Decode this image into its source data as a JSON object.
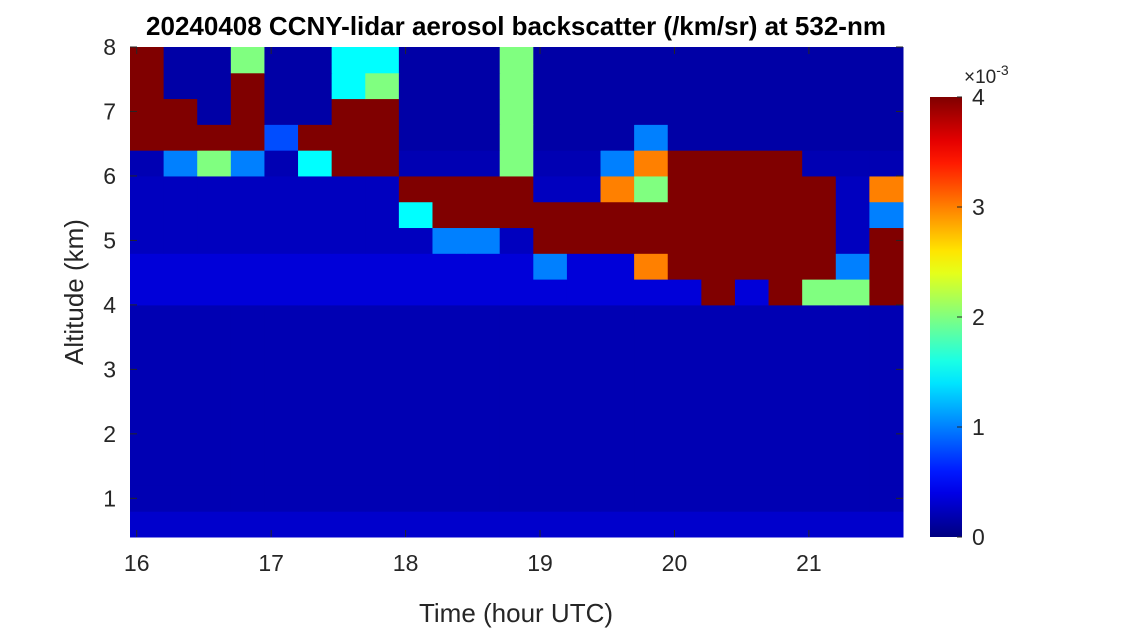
{
  "chart_data": {
    "type": "heatmap",
    "title": "20240408 CCNY-lidar aerosol backscatter (/km/sr) at 532-nm",
    "xlabel": "Time (hour UTC)",
    "ylabel": "Altitude (km)",
    "colormap": "jet",
    "colorbar_multiplier": {
      "base": "×10",
      "exponent": "-3"
    },
    "x_edges": [
      15.95,
      16.2,
      16.45,
      16.7,
      16.95,
      17.2,
      17.45,
      17.7,
      17.95,
      18.2,
      18.45,
      18.7,
      18.95,
      19.2,
      19.45,
      19.7,
      19.95,
      20.2,
      20.45,
      20.7,
      20.95,
      21.2,
      21.45,
      21.7
    ],
    "y_edges": [
      0.4,
      0.8,
      1.2,
      1.6,
      2.0,
      2.4,
      2.8,
      3.2,
      3.6,
      4.0,
      4.4,
      4.8,
      5.2,
      5.6,
      6.0,
      6.4,
      6.8,
      7.2,
      7.6,
      8.0
    ],
    "z": [
      [
        0.3,
        0.3,
        0.3,
        0.3,
        0.3,
        0.3,
        0.3,
        0.3,
        0.3,
        0.3,
        0.3,
        0.3,
        0.3,
        0.3,
        0.3,
        0.3,
        0.3,
        0.3,
        0.3,
        0.3,
        0.3,
        0.3,
        0.3
      ],
      [
        0.2,
        0.2,
        0.2,
        0.2,
        0.2,
        0.2,
        0.2,
        0.2,
        0.2,
        0.2,
        0.2,
        0.2,
        0.2,
        0.2,
        0.2,
        0.2,
        0.2,
        0.2,
        0.2,
        0.2,
        0.2,
        0.2,
        0.2
      ],
      [
        0.2,
        0.2,
        0.2,
        0.2,
        0.2,
        0.2,
        0.2,
        0.2,
        0.2,
        0.2,
        0.2,
        0.2,
        0.2,
        0.2,
        0.2,
        0.2,
        0.2,
        0.2,
        0.2,
        0.2,
        0.2,
        0.2,
        0.2
      ],
      [
        0.2,
        0.2,
        0.2,
        0.2,
        0.2,
        0.2,
        0.2,
        0.2,
        0.2,
        0.2,
        0.2,
        0.2,
        0.2,
        0.2,
        0.2,
        0.2,
        0.2,
        0.2,
        0.2,
        0.2,
        0.2,
        0.2,
        0.2
      ],
      [
        0.2,
        0.2,
        0.2,
        0.2,
        0.2,
        0.2,
        0.2,
        0.2,
        0.2,
        0.2,
        0.2,
        0.2,
        0.2,
        0.2,
        0.2,
        0.2,
        0.2,
        0.2,
        0.2,
        0.2,
        0.2,
        0.2,
        0.2
      ],
      [
        0.2,
        0.2,
        0.2,
        0.2,
        0.2,
        0.2,
        0.2,
        0.2,
        0.2,
        0.2,
        0.2,
        0.2,
        0.2,
        0.2,
        0.2,
        0.2,
        0.2,
        0.2,
        0.2,
        0.2,
        0.2,
        0.2,
        0.2
      ],
      [
        0.2,
        0.2,
        0.2,
        0.2,
        0.2,
        0.2,
        0.2,
        0.2,
        0.2,
        0.2,
        0.2,
        0.2,
        0.2,
        0.2,
        0.2,
        0.2,
        0.2,
        0.2,
        0.2,
        0.2,
        0.2,
        0.2,
        0.2
      ],
      [
        0.2,
        0.2,
        0.2,
        0.2,
        0.2,
        0.2,
        0.2,
        0.2,
        0.2,
        0.2,
        0.2,
        0.2,
        0.2,
        0.2,
        0.2,
        0.2,
        0.2,
        0.2,
        0.2,
        0.2,
        0.2,
        0.2,
        0.2
      ],
      [
        0.2,
        0.2,
        0.2,
        0.2,
        0.2,
        0.2,
        0.2,
        0.2,
        0.2,
        0.2,
        0.2,
        0.2,
        0.2,
        0.2,
        0.2,
        0.2,
        0.2,
        0.2,
        0.2,
        0.2,
        0.2,
        0.2,
        0.2
      ],
      [
        0.35,
        0.35,
        0.35,
        0.35,
        0.35,
        0.35,
        0.35,
        0.35,
        0.35,
        0.35,
        0.35,
        0.35,
        0.35,
        0.35,
        0.35,
        0.35,
        0.35,
        4,
        0.35,
        4,
        2,
        2,
        4
      ],
      [
        0.35,
        0.35,
        0.35,
        0.35,
        0.35,
        0.35,
        0.35,
        0.35,
        0.35,
        0.35,
        0.35,
        0.35,
        1,
        0.35,
        0.35,
        3,
        4,
        4,
        4,
        4,
        4,
        1,
        4
      ],
      [
        0.25,
        0.25,
        0.25,
        0.25,
        0.25,
        0.25,
        0.25,
        0.25,
        0.25,
        1,
        1,
        0.25,
        4,
        4,
        4,
        4,
        4,
        4,
        4,
        4,
        4,
        0.25,
        4
      ],
      [
        0.25,
        0.25,
        0.25,
        0.25,
        0.25,
        0.25,
        0.25,
        0.25,
        1.5,
        4,
        4,
        4,
        4,
        4,
        4,
        4,
        4,
        4,
        4,
        4,
        4,
        0.25,
        1
      ],
      [
        0.25,
        0.25,
        0.25,
        0.25,
        0.25,
        0.25,
        0.25,
        0.25,
        4,
        4,
        4,
        4,
        0.25,
        0.25,
        3,
        2,
        4,
        4,
        4,
        4,
        4,
        0.25,
        3
      ],
      [
        0.2,
        1,
        2,
        1,
        0.2,
        1.5,
        4,
        4,
        0.2,
        0.2,
        0.2,
        2,
        0.2,
        0.2,
        1,
        3,
        4,
        4,
        4,
        4,
        0.2,
        0.2,
        0.2
      ],
      [
        4,
        4,
        4,
        4,
        0.8,
        4,
        4,
        4,
        0.15,
        0.15,
        0.15,
        2,
        0.15,
        0.15,
        0.15,
        1,
        0.15,
        0.15,
        0.15,
        0.15,
        0.15,
        0.15,
        0.15
      ],
      [
        4,
        4,
        0.15,
        4,
        0.15,
        0.15,
        4,
        4,
        0.15,
        0.15,
        0.15,
        2,
        0.15,
        0.15,
        0.15,
        0.15,
        0.15,
        0.15,
        0.15,
        0.15,
        0.15,
        0.15,
        0.15
      ],
      [
        4,
        0.15,
        0.15,
        4,
        0.15,
        0.15,
        1.5,
        2,
        0.15,
        0.15,
        0.15,
        2,
        0.15,
        0.15,
        0.15,
        0.15,
        0.15,
        0.15,
        0.15,
        0.15,
        0.15,
        0.15,
        0.15
      ],
      [
        4,
        0.15,
        0.15,
        2,
        0.15,
        0.15,
        1.5,
        1.5,
        0.15,
        0.15,
        0.15,
        2,
        0.15,
        0.15,
        0.15,
        0.15,
        0.15,
        0.15,
        0.15,
        0.15,
        0.15,
        0.15,
        0.15
      ]
    ],
    "xlim": [
      15.95,
      21.7
    ],
    "xticks": [
      16,
      17,
      18,
      19,
      20,
      21
    ],
    "ylim": [
      0.4,
      8
    ],
    "yticks": [
      1,
      2,
      3,
      4,
      5,
      6,
      7,
      8
    ],
    "clim": [
      0,
      4
    ],
    "cticks": [
      0,
      1,
      2,
      3,
      4
    ]
  }
}
